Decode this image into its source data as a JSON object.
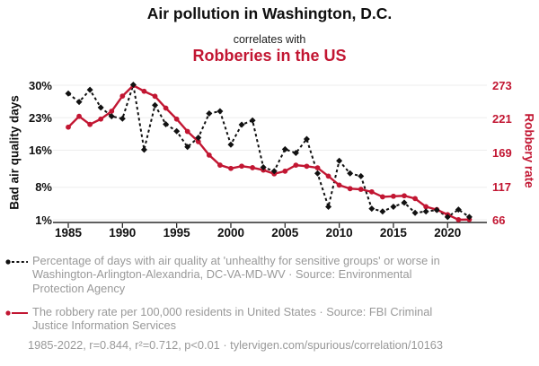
{
  "header": {
    "title": "Air pollution in Washington, D.C.",
    "subtitle": "correlates with",
    "title_secondary": "Robberies in the US"
  },
  "chart_data": {
    "type": "line",
    "x": [
      1985,
      1986,
      1987,
      1988,
      1989,
      1990,
      1991,
      1992,
      1993,
      1994,
      1995,
      1996,
      1997,
      1998,
      1999,
      2000,
      2001,
      2002,
      2003,
      2004,
      2005,
      2006,
      2007,
      2008,
      2009,
      2010,
      2011,
      2012,
      2013,
      2014,
      2015,
      2016,
      2017,
      2018,
      2019,
      2020,
      2021,
      2022
    ],
    "x_ticks": [
      1985,
      1990,
      1995,
      2000,
      2005,
      2010,
      2015,
      2020
    ],
    "left_axis": {
      "label": "Bad air quality days",
      "min": 1,
      "max": 30,
      "ticks": [
        {
          "value": 30,
          "label": "30%"
        },
        {
          "value": 23,
          "label": "23%"
        },
        {
          "value": 16,
          "label": "16%"
        },
        {
          "value": 8,
          "label": "8%"
        },
        {
          "value": 1,
          "label": "1%"
        }
      ]
    },
    "right_axis": {
      "label": "Robbery rate",
      "min": 66,
      "max": 273,
      "ticks": [
        {
          "value": 273,
          "label": "273"
        },
        {
          "value": 221,
          "label": "221"
        },
        {
          "value": 169,
          "label": "169"
        },
        {
          "value": 117,
          "label": "117"
        },
        {
          "value": 66,
          "label": "66"
        }
      ]
    },
    "series": [
      {
        "name": "Percentage of days with air quality at 'unhealthy for sensitive groups' or worse in Washington-Arlington-Alexandria, DC-VA-MD-WV",
        "axis": "left",
        "color": "#111111",
        "line": "dashed",
        "marker": "diamond",
        "values": [
          28.2,
          26.4,
          29.0,
          25.2,
          23.3,
          22.8,
          30.1,
          16.1,
          25.7,
          21.6,
          20.1,
          16.7,
          18.7,
          23.9,
          24.4,
          17.2,
          21.5,
          22.4,
          12.3,
          11.5,
          16.2,
          15.4,
          18.4,
          11.0,
          3.8,
          13.7,
          11.0,
          10.4,
          3.4,
          2.8,
          3.8,
          4.7,
          2.5,
          2.8,
          3.1,
          1.6,
          3.2,
          1.6
        ]
      },
      {
        "name": "The robbery rate per 100,000 residents in United States",
        "axis": "right",
        "color": "#c21632",
        "line": "solid",
        "marker": "circle",
        "values": [
          208.5,
          225.1,
          212.7,
          220.9,
          233.0,
          256.3,
          272.7,
          263.7,
          256.0,
          237.8,
          220.9,
          201.9,
          186.2,
          165.5,
          150.1,
          145.0,
          148.5,
          146.1,
          142.5,
          136.7,
          140.8,
          150.0,
          148.3,
          145.9,
          133.1,
          119.3,
          113.9,
          112.9,
          109.0,
          101.3,
          102.2,
          102.9,
          98.6,
          86.1,
          81.6,
          73.9,
          66.1,
          66.5
        ]
      }
    ]
  },
  "legend": {
    "items": [
      {
        "text": "Percentage of days with air quality at 'unhealthy for sensitive groups' or worse in Washington-Arlington-Alexandria, DC-VA-MD-WV · Source: Environmental Protection Agency"
      },
      {
        "text": "The robbery rate per 100,000 residents in United States · Source: FBI Criminal Justice Information Services"
      }
    ],
    "footnote": "1985-2022, r=0.844, r²=0.712, p<0.01 · tylervigen.com/spurious/correlation/10163"
  },
  "colors": {
    "accent_red": "#c21632",
    "series_black": "#111111",
    "legend_gray": "#999999",
    "grid": "#ededed",
    "axis": "#2a2a2a"
  }
}
